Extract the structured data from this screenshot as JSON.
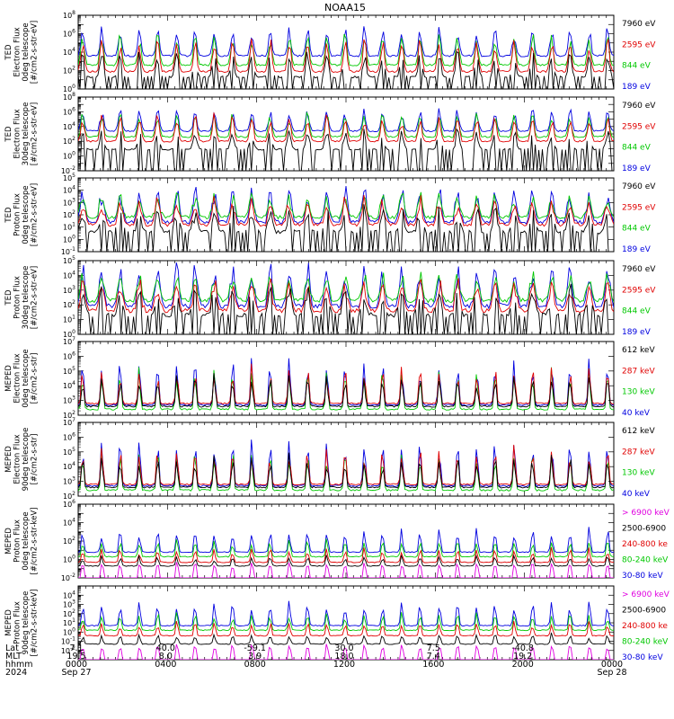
{
  "chart_data": {
    "type": "line",
    "title": "NOAA15",
    "x_range_hours": [
      0,
      24
    ],
    "panels": [
      {
        "ylabel": [
          "TED",
          "Electron Flux",
          "0deg telescope",
          "[#/cm2-s-str-eV]"
        ],
        "ylog": [
          0,
          8
        ],
        "ytick_exps": [
          0,
          2,
          4,
          6,
          8
        ],
        "baselines": [
          1.3,
          1.9,
          2.6,
          3.6
        ],
        "profile": "e",
        "legend": [
          {
            "label": "7960 eV",
            "color": "#000000"
          },
          {
            "label": "2595 eV",
            "color": "#e00000"
          },
          {
            "label": "844 eV",
            "color": "#00c800"
          },
          {
            "label": "189 eV",
            "color": "#0000e0"
          }
        ]
      },
      {
        "ylabel": [
          "TED",
          "Electron Flux",
          "30deg telescope",
          "[#/cm2-s-str-eV]"
        ],
        "ylog": [
          -2,
          8
        ],
        "ytick_exps": [
          -2,
          0,
          2,
          4,
          6,
          8
        ],
        "baselines": [
          0.9,
          2.0,
          2.6,
          3.4
        ],
        "profile": "e",
        "legend": [
          {
            "label": "7960 eV",
            "color": "#000000"
          },
          {
            "label": "2595 eV",
            "color": "#e00000"
          },
          {
            "label": "844 eV",
            "color": "#00c800"
          },
          {
            "label": "189 eV",
            "color": "#0000e0"
          }
        ]
      },
      {
        "ylabel": [
          "TED",
          "Proton Flux",
          "0deg telescope",
          "[#/cm2-s-str-eV]"
        ],
        "ylog": [
          -1,
          5
        ],
        "ytick_exps": [
          -1,
          0,
          1,
          2,
          3,
          4,
          5
        ],
        "baselines": [
          0.6,
          1.2,
          1.8,
          1.4
        ],
        "profile": "p",
        "legend": [
          {
            "label": "7960 eV",
            "color": "#000000"
          },
          {
            "label": "2595 eV",
            "color": "#e00000"
          },
          {
            "label": "844 eV",
            "color": "#00c800"
          },
          {
            "label": "189 eV",
            "color": "#0000e0"
          }
        ]
      },
      {
        "ylabel": [
          "TED",
          "Proton Flux",
          "30deg telescope",
          "[#/cm2-s-str-eV]"
        ],
        "ylog": [
          0,
          5
        ],
        "ytick_exps": [
          0,
          1,
          2,
          3,
          4,
          5
        ],
        "baselines": [
          1.3,
          1.6,
          2.3,
          1.9
        ],
        "profile": "p",
        "legend": [
          {
            "label": "7960 eV",
            "color": "#000000"
          },
          {
            "label": "2595 eV",
            "color": "#e00000"
          },
          {
            "label": "844 eV",
            "color": "#00c800"
          },
          {
            "label": "189 eV",
            "color": "#0000e0"
          }
        ]
      },
      {
        "ylabel": [
          "MEPED",
          "Electron Flux",
          "0deg telescope",
          "[#/cm2-s-str]"
        ],
        "ylog": [
          2,
          7
        ],
        "ytick_exps": [
          2,
          3,
          4,
          5,
          6,
          7
        ],
        "baselines": [
          2.6,
          2.8,
          2.4,
          2.7
        ],
        "profile": "m",
        "legend": [
          {
            "label": "612 keV",
            "color": "#000000"
          },
          {
            "label": "287 keV",
            "color": "#e00000"
          },
          {
            "label": "130 keV",
            "color": "#00c800"
          },
          {
            "label": "40 keV",
            "color": "#0000e0"
          }
        ]
      },
      {
        "ylabel": [
          "MEPED",
          "Electron Flux",
          "90deg telescope",
          "[#/cm2-s-str]"
        ],
        "ylog": [
          2,
          7
        ],
        "ytick_exps": [
          2,
          3,
          4,
          5,
          6,
          7
        ],
        "baselines": [
          2.6,
          2.8,
          2.4,
          2.7
        ],
        "profile": "m",
        "legend": [
          {
            "label": "612 keV",
            "color": "#000000"
          },
          {
            "label": "287 keV",
            "color": "#e00000"
          },
          {
            "label": "130 keV",
            "color": "#00c800"
          },
          {
            "label": "40 keV",
            "color": "#0000e0"
          }
        ]
      },
      {
        "ylabel": [
          "MEPED",
          "Proton Flux",
          "0deg telescope",
          "[#/cm2-s-str-keV]"
        ],
        "ylog": [
          -2,
          6
        ],
        "ytick_exps": [
          -2,
          0,
          2,
          4,
          6
        ],
        "baselines": [
          -1.3,
          -0.7,
          -0.3,
          0.3,
          0.8
        ],
        "profile": "mp",
        "legend": [
          {
            "label": "> 6900 keV",
            "color": "#e000e0"
          },
          {
            "label": "2500-6900",
            "color": "#000000"
          },
          {
            "label": "240-800 ke",
            "color": "#e00000"
          },
          {
            "label": "80-240 keV",
            "color": "#00c800"
          },
          {
            "label": "30-80 keV",
            "color": "#0000e0"
          }
        ]
      },
      {
        "ylabel": [
          "MEPED",
          "Proton Flux",
          "90deg telescope",
          "[#/cm2-s-str-keV]"
        ],
        "ylog": [
          -3,
          5
        ],
        "ytick_exps": [
          -2,
          -1,
          0,
          1,
          2,
          3,
          4
        ],
        "baselines": [
          -2.3,
          -1.3,
          -0.4,
          0.2,
          0.7
        ],
        "profile": "mp",
        "legend": [
          {
            "label": "> 6900 keV",
            "color": "#e000e0"
          },
          {
            "label": "2500-6900",
            "color": "#000000"
          },
          {
            "label": "240-800 ke",
            "color": "#e00000"
          },
          {
            "label": "80-240 keV",
            "color": "#00c800"
          },
          {
            "label": "30-80 keV",
            "color": "#0000e0"
          }
        ]
      }
    ],
    "footer": {
      "row_labels": [
        "Lat",
        "MLT",
        "hhmm",
        "2024"
      ],
      "columns": [
        {
          "lat": "7.1",
          "mlt": "19.5",
          "time": "0000",
          "date": "Sep 27"
        },
        {
          "lat": "40.0",
          "mlt": "8.0",
          "time": "0400",
          "date": ""
        },
        {
          "lat": "-59.1",
          "mlt": "3.9",
          "time": "0800",
          "date": ""
        },
        {
          "lat": "30.0",
          "mlt": "18.0",
          "time": "1200",
          "date": ""
        },
        {
          "lat": "7.5",
          "mlt": "7.4",
          "time": "1600",
          "date": ""
        },
        {
          "lat": "-40.8",
          "mlt": "19.2",
          "time": "2000",
          "date": ""
        },
        {
          "lat": "",
          "mlt": "",
          "time": "0000",
          "date": "Sep 28"
        }
      ]
    }
  }
}
